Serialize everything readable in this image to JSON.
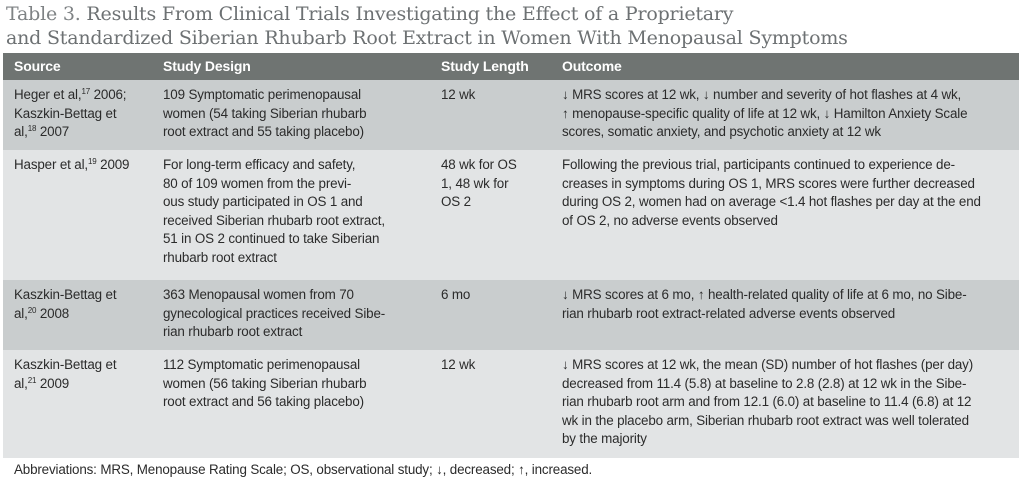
{
  "title": {
    "label": "Table 3.",
    "line1": "Results From Clinical Trials Investigating the Effect of a Proprietary",
    "line2": "and Standardized Siberian Rhubarb Root Extract in Women With Menopausal Symptoms"
  },
  "columns": [
    "Source",
    "Study Design",
    "Study Length",
    "Outcome"
  ],
  "rows": [
    {
      "source_a": "Heger et al,",
      "ref_a": "17",
      "source_a2": " 2006;",
      "source_b": "Kaszkin-Bettag et",
      "source_c": "al,",
      "ref_b": "18",
      "source_c2": " 2007",
      "design": [
        "109 Symptomatic perimenopausal",
        "women (54 taking Siberian rhubarb",
        "root extract and 55 taking placebo)"
      ],
      "length": [
        "12 wk"
      ],
      "outcome": [
        "↓ MRS scores at 12 wk, ↓ number and severity of hot flashes at 4 wk,",
        "↑ menopause-specific quality of life at 12 wk, ↓ Hamilton Anxiety Scale",
        "scores, somatic anxiety, and psychotic anxiety at 12 wk"
      ]
    },
    {
      "source_a": "Hasper et al,",
      "ref_a": "19",
      "source_a2": " 2009",
      "design": [
        "For long-term efficacy and safety,",
        "80 of 109 women from the previ-",
        "ous study participated in OS 1 and",
        "received Siberian rhubarb root extract,",
        "51 in OS 2 continued to take Siberian",
        "rhubarb root extract"
      ],
      "length": [
        "48 wk for OS",
        "1, 48 wk for",
        "OS 2"
      ],
      "outcome": [
        "Following the previous trial, participants continued to experience de-",
        "creases in symptoms during OS 1, MRS scores were further decreased",
        "during OS 2, women had on average <1.4 hot flashes per day at the end",
        "of OS 2, no adverse events observed"
      ]
    },
    {
      "source_a": "Kaszkin-Bettag et",
      "source_b": "al,",
      "ref_a": "20",
      "source_b2": " 2008",
      "design": [
        "363 Menopausal women from 70",
        "gynecological practices received Sibe-",
        "rian rhubarb root extract"
      ],
      "length": [
        "6 mo"
      ],
      "outcome": [
        "↓ MRS scores at 6 mo, ↑ health-related quality of life at 6 mo, no Sibe-",
        "rian rhubarb root extract-related adverse events observed"
      ]
    },
    {
      "source_a": "Kaszkin-Bettag et",
      "source_b": "al,",
      "ref_a": "21",
      "source_b2": " 2009",
      "design": [
        "112 Symptomatic perimenopausal",
        "women (56 taking Siberian rhubarb",
        "root extract and 56 taking placebo)"
      ],
      "length": [
        "12 wk"
      ],
      "outcome": [
        "↓ MRS scores at 12 wk, the mean (SD) number of hot flashes (per day)",
        "decreased from 11.4 (5.8) at baseline to 2.8 (2.8) at 12 wk in the Sibe-",
        "rian rhubarb root arm and from 12.1 (6.0) at baseline to 11.4 (6.8) at 12",
        "wk in the placebo arm, Siberian rhubarb root extract was well tolerated",
        "by the majority"
      ]
    }
  ],
  "footnote": "Abbreviations: MRS, Menopause Rating Scale; OS, observational study; ↓, decreased; ↑, increased.",
  "colors": {
    "header_bg": "#6f7472",
    "row_dark": "#c9cdce",
    "row_light": "#e2e4e5",
    "title": "#6d7173"
  }
}
